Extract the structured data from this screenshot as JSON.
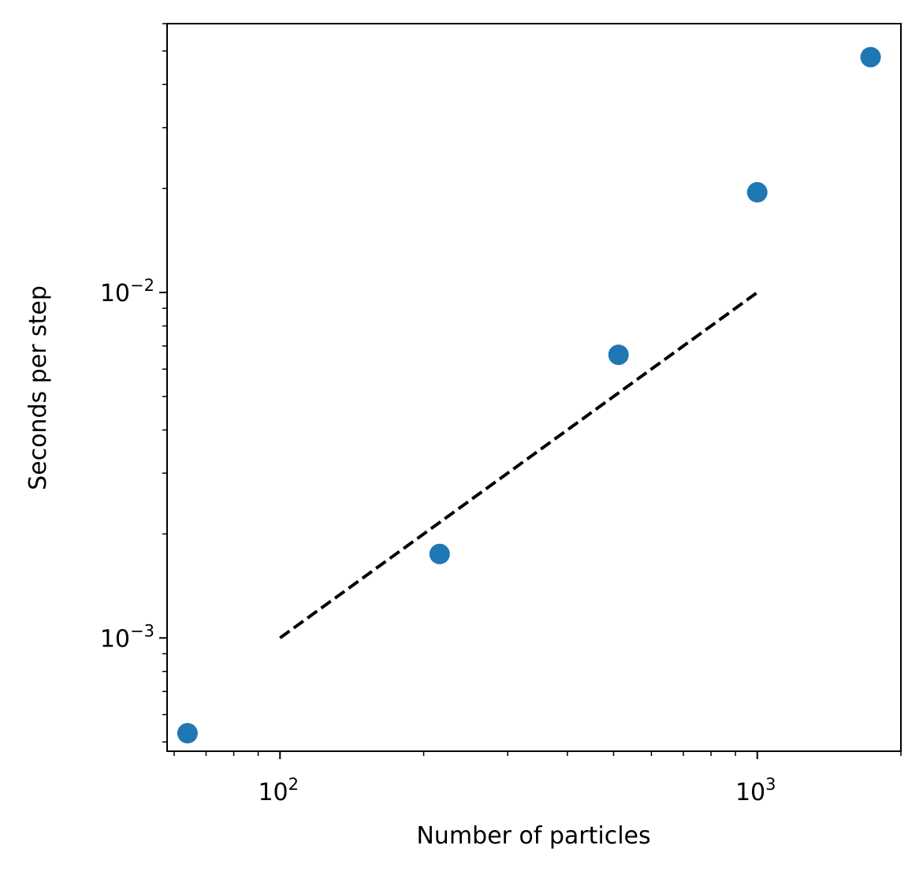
{
  "chart_data": {
    "type": "scatter",
    "title": "",
    "xlabel": "Number of particles",
    "ylabel": "Seconds per step",
    "xscale": "log",
    "yscale": "log",
    "xlim": [
      58,
      2000
    ],
    "ylim": [
      0.00047,
      0.06
    ],
    "grid": false,
    "legend": "none",
    "x_major_ticks": [
      {
        "value": 100,
        "base": "10",
        "exponent": "2"
      },
      {
        "value": 1000,
        "base": "10",
        "exponent": "3"
      }
    ],
    "y_major_ticks": [
      {
        "value": 0.001,
        "base": "10",
        "exponent": "−3"
      },
      {
        "value": 0.01,
        "base": "10",
        "exponent": "−2"
      }
    ],
    "x_minor_ticks": [
      60,
      70,
      80,
      90,
      200,
      300,
      400,
      500,
      600,
      700,
      800,
      900,
      2000
    ],
    "y_minor_ticks": [
      0.0005,
      0.0006,
      0.0007,
      0.0008,
      0.0009,
      0.002,
      0.003,
      0.004,
      0.005,
      0.006,
      0.007,
      0.008,
      0.009,
      0.02,
      0.03,
      0.04,
      0.05,
      0.06
    ],
    "series": [
      {
        "kind": "scatter",
        "color": "#1f77b4",
        "x": [
          64,
          216,
          512,
          1000,
          1728
        ],
        "y": [
          0.00053,
          0.00175,
          0.0066,
          0.0195,
          0.048
        ]
      },
      {
        "kind": "line",
        "style": "dashed",
        "color": "#000000",
        "x": [
          100,
          1000
        ],
        "y": [
          0.001,
          0.01
        ]
      }
    ]
  }
}
